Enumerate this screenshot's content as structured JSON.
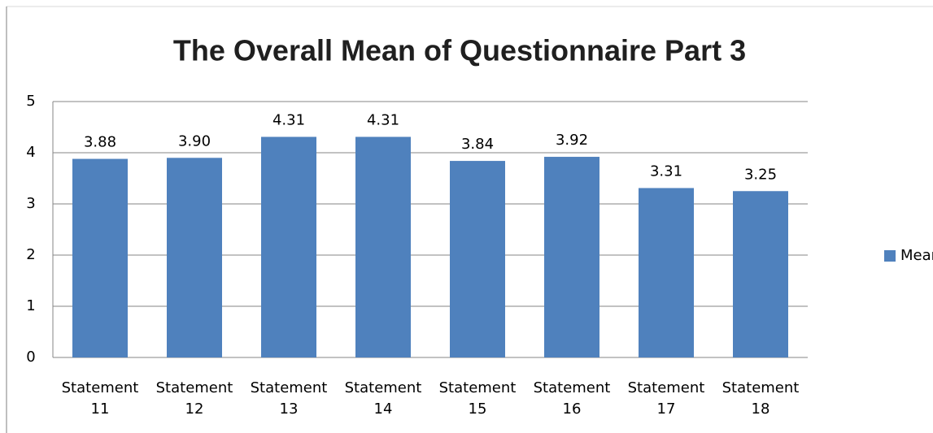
{
  "chart_data": {
    "type": "bar",
    "title": "The Overall Mean of Questionnaire Part 3",
    "categories": [
      "Statement 11",
      "Statement 12",
      "Statement 13",
      "Statement 14",
      "Statement 15",
      "Statement 16",
      "Statement 17",
      "Statement 18"
    ],
    "series": [
      {
        "name": "Mean",
        "color": "#4f81bd",
        "values": [
          3.88,
          3.9,
          4.31,
          4.31,
          3.84,
          3.92,
          3.31,
          3.25
        ],
        "value_labels": [
          "3.88",
          "3.90",
          "4.31",
          "4.31",
          "3.84",
          "3.92",
          "3.31",
          "3.25"
        ]
      }
    ],
    "ylim": [
      0,
      5
    ],
    "yticks": [
      0,
      1,
      2,
      3,
      4,
      5
    ],
    "grid": true,
    "legend": "right"
  }
}
